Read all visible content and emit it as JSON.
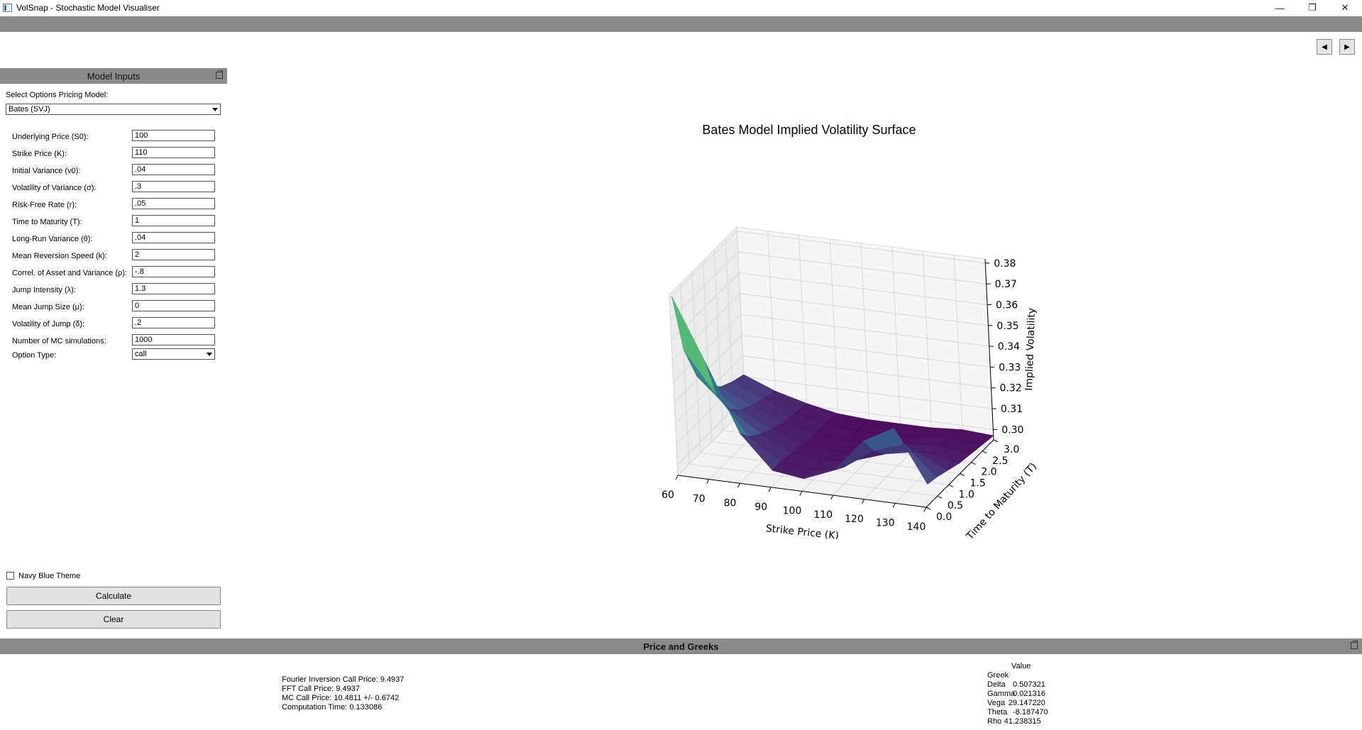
{
  "window": {
    "title": "VolSnap - Stochastic Model Visualiser",
    "minimize": "—",
    "maximize": "❐",
    "close": "✕"
  },
  "nav": {
    "back": "◀",
    "forward": "▶"
  },
  "inputs_panel": {
    "title": "Model Inputs",
    "model_label": "Select Options Pricing Model:",
    "model_value": "Bates (SVJ)",
    "params": [
      {
        "label": "Underlying Price (S0):",
        "value": "100"
      },
      {
        "label": "Strike Price (K):",
        "value": "110"
      },
      {
        "label": "Initial Variance (v0):",
        "value": ".04"
      },
      {
        "label": "Volatility of Variance (σ):",
        "value": ".3"
      },
      {
        "label": "Risk-Free Rate (r):",
        "value": ".05"
      },
      {
        "label": "Time to Maturity (T):",
        "value": "1"
      },
      {
        "label": "Long-Run Variance (θ):",
        "value": ".04"
      },
      {
        "label": "Mean Reversion Speed (k):",
        "value": "2"
      },
      {
        "label": "Correl. of Asset and Variance (ρ):",
        "value": "-.8"
      },
      {
        "label": "Jump Intensity (λ):",
        "value": "1.3"
      },
      {
        "label": "Mean Jump Size (μ):",
        "value": "0"
      },
      {
        "label": "Volatility of Jump (δ):",
        "value": ".2"
      },
      {
        "label": "Number of MC simulations:",
        "value": "1000"
      }
    ],
    "option_type_label": "Option Type:",
    "option_type_value": "call",
    "theme_label": "Navy Blue Theme",
    "theme_checked": false,
    "calculate": "Calculate",
    "clear": "Clear"
  },
  "chart_data": {
    "type": "surface",
    "title": "Bates Model Implied Volatility Surface",
    "xlabel": "Strike Price (K)",
    "ylabel": "Time to Maturity (T)",
    "zlabel": "Implied Volatility",
    "x_ticks": [
      "60",
      "70",
      "80",
      "90",
      "100",
      "110",
      "120",
      "130",
      "140"
    ],
    "y_ticks": [
      "0.0",
      "0.5",
      "1.0",
      "1.5",
      "2.0",
      "2.5",
      "3.0"
    ],
    "z_ticks": [
      "0.30",
      "0.31",
      "0.32",
      "0.33",
      "0.34",
      "0.35",
      "0.36",
      "0.37",
      "0.38"
    ],
    "xlim": [
      60,
      140
    ],
    "ylim": [
      0,
      3
    ],
    "zlim": [
      0.295,
      0.382
    ],
    "strikes": [
      60,
      70,
      80,
      90,
      100,
      110,
      120,
      130,
      140
    ],
    "maturities": [
      0.1,
      0.5,
      1.0,
      1.5,
      2.0,
      2.5,
      3.0
    ],
    "iv": [
      [
        0.38,
        0.35,
        0.318,
        0.302,
        0.3,
        0.306,
        0.322,
        0.33,
        0.305
      ],
      [
        0.35,
        0.33,
        0.312,
        0.302,
        0.3,
        0.303,
        0.313,
        0.318,
        0.304
      ],
      [
        0.332,
        0.318,
        0.308,
        0.301,
        0.299,
        0.301,
        0.306,
        0.309,
        0.302
      ],
      [
        0.322,
        0.312,
        0.305,
        0.3,
        0.298,
        0.299,
        0.302,
        0.303,
        0.3
      ],
      [
        0.316,
        0.309,
        0.303,
        0.299,
        0.298,
        0.298,
        0.3,
        0.301,
        0.299
      ],
      [
        0.313,
        0.307,
        0.302,
        0.299,
        0.297,
        0.297,
        0.298,
        0.299,
        0.298
      ],
      [
        0.311,
        0.305,
        0.301,
        0.298,
        0.297,
        0.297,
        0.297,
        0.298,
        0.297
      ]
    ],
    "colormap": [
      "#440154",
      "#3b528b",
      "#21918c",
      "#5ec962",
      "#fde725"
    ],
    "grid": true
  },
  "results_panel": {
    "title": "Price and Greeks",
    "lines": [
      "Fourier Inversion Call Price: 9.4937",
      "FFT Call Price: 9.4937",
      "MC Call Price: 10.4811 +/- 0.6742",
      "Computation Time: 0.133086"
    ],
    "value_header": "Value",
    "greek_header": "Greek",
    "greeks": [
      {
        "name": "Delta",
        "value": "0.507321"
      },
      {
        "name": "Gamma",
        "value": "0.021316"
      },
      {
        "name": "Vega",
        "value": "29.147220"
      },
      {
        "name": "Theta",
        "value": "-8.187470"
      },
      {
        "name": "Rho",
        "value": "41.238315"
      }
    ]
  }
}
